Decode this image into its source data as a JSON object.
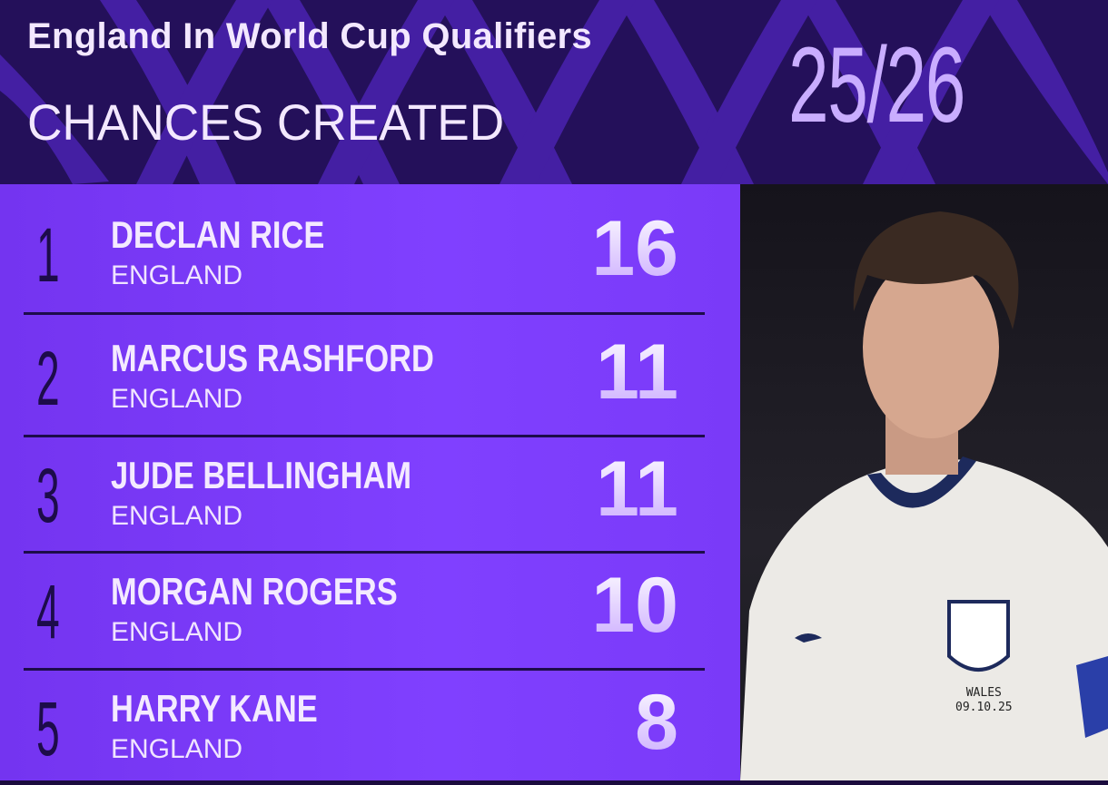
{
  "header": {
    "title": "England In World Cup Qualifiers",
    "subtitle": "CHANCES CREATED",
    "season": "25/26"
  },
  "rows": [
    {
      "rank": "1",
      "name": "DECLAN RICE",
      "country": "ENGLAND",
      "value": "16"
    },
    {
      "rank": "2",
      "name": "MARCUS RASHFORD",
      "country": "ENGLAND",
      "value": "11"
    },
    {
      "rank": "3",
      "name": "JUDE BELLINGHAM",
      "country": "ENGLAND",
      "value": "11"
    },
    {
      "rank": "4",
      "name": "MORGAN ROGERS",
      "country": "ENGLAND",
      "value": "10"
    },
    {
      "rank": "5",
      "name": "HARRY KANE",
      "country": "ENGLAND",
      "value": "8"
    }
  ],
  "photo": {
    "shirt_line1": "WALES",
    "shirt_line2": "09.10.25"
  },
  "colors": {
    "header_bg": "#24105a",
    "panel_bg": "#7d3dfb",
    "rank_text": "#1d0c4a",
    "accent": "#c9adff"
  }
}
